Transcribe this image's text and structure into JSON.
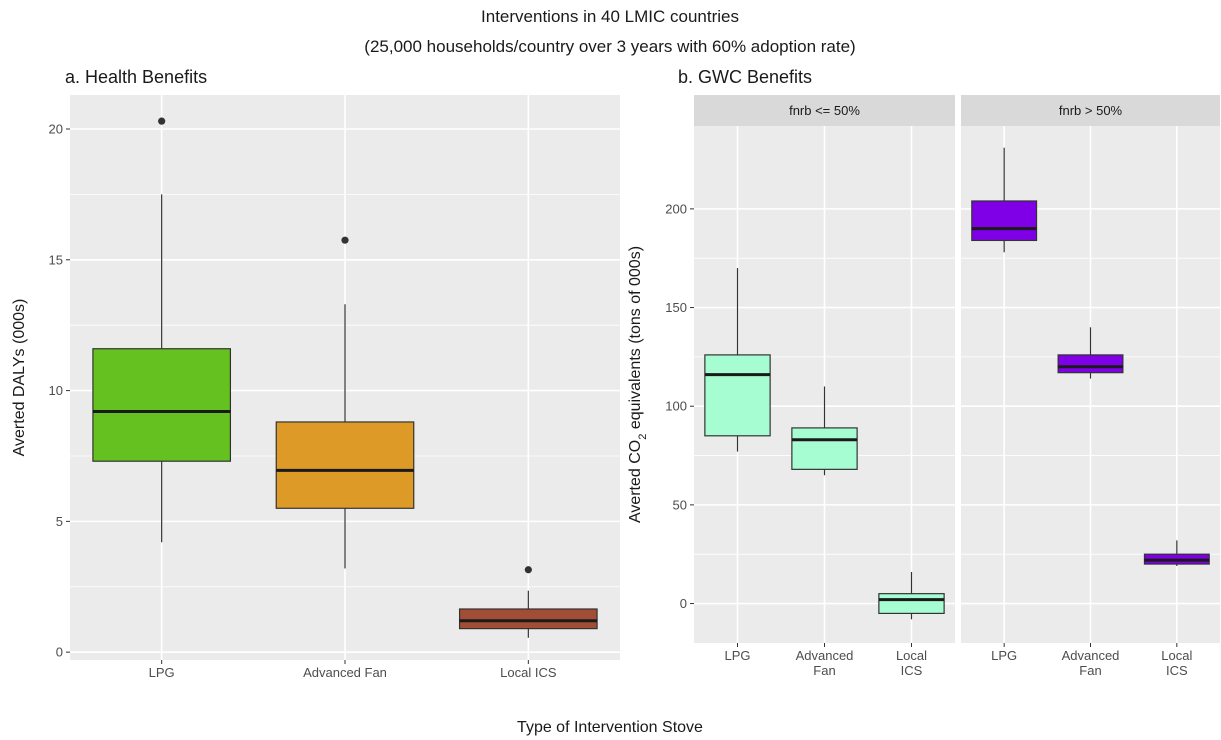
{
  "figure": {
    "title_line1": "Interventions in 40 LMIC countries",
    "title_line2": "(25,000 households/country over 3 years with 60% adoption rate)",
    "xlabel": "Type of Intervention Stove"
  },
  "chart_data": [
    {
      "type": "box",
      "title": "a. Health Benefits",
      "ylabel": "Averted DALYs (000s)",
      "ylim": [
        -0.3,
        21.3
      ],
      "yticks": [
        0,
        5,
        10,
        15,
        20
      ],
      "grid": true,
      "categories": [
        "LPG",
        "Advanced Fan",
        "Local ICS"
      ],
      "boxes": [
        {
          "category": "LPG",
          "min": 4.2,
          "q1": 7.3,
          "median": 9.2,
          "q3": 11.6,
          "max": 17.5,
          "outliers": [
            20.3
          ],
          "color": "#64c11f"
        },
        {
          "category": "Advanced Fan",
          "min": 3.2,
          "q1": 5.5,
          "median": 6.95,
          "q3": 8.8,
          "max": 13.3,
          "outliers": [
            15.75
          ],
          "color": "#de9a26"
        },
        {
          "category": "Local ICS",
          "min": 0.55,
          "q1": 0.9,
          "median": 1.2,
          "q3": 1.65,
          "max": 2.35,
          "outliers": [
            3.15
          ],
          "color": "#a24d35"
        }
      ]
    },
    {
      "type": "box",
      "title": "b. GWC Benefits",
      "ylabel": "Averted CO2 equivalents (tons of 000s)",
      "ylabel_parts": {
        "before": "Averted CO",
        "sub": "2",
        "after": " equivalents (tons of 000s)"
      },
      "ylim": [
        -20,
        242
      ],
      "yticks": [
        0,
        50,
        100,
        150,
        200
      ],
      "grid": true,
      "categories": [
        "LPG",
        "Advanced\nFan",
        "Local\nICS"
      ],
      "facets": [
        {
          "label": "fnrb <= 50%",
          "boxes": [
            {
              "category": "LPG",
              "min": 77,
              "q1": 85,
              "median": 116,
              "q3": 126,
              "max": 170,
              "outliers": [],
              "color": "#a6fdd1"
            },
            {
              "category": "Advanced Fan",
              "min": 65,
              "q1": 68,
              "median": 83,
              "q3": 89,
              "max": 110,
              "outliers": [],
              "color": "#a6fdd1"
            },
            {
              "category": "Local ICS",
              "min": -8,
              "q1": -5,
              "median": 2,
              "q3": 5,
              "max": 16,
              "outliers": [],
              "color": "#a6fdd1"
            }
          ]
        },
        {
          "label": "fnrb > 50%",
          "boxes": [
            {
              "category": "LPG",
              "min": 178,
              "q1": 184,
              "median": 190,
              "q3": 204,
              "max": 231,
              "outliers": [],
              "color": "#7f00e6"
            },
            {
              "category": "Advanced Fan",
              "min": 114,
              "q1": 117,
              "median": 120,
              "q3": 126,
              "max": 140,
              "outliers": [],
              "color": "#7f00e6"
            },
            {
              "category": "Local ICS",
              "min": 19,
              "q1": 20,
              "median": 22,
              "q3": 25,
              "max": 32,
              "outliers": [],
              "color": "#7f00e6"
            }
          ]
        }
      ]
    }
  ]
}
